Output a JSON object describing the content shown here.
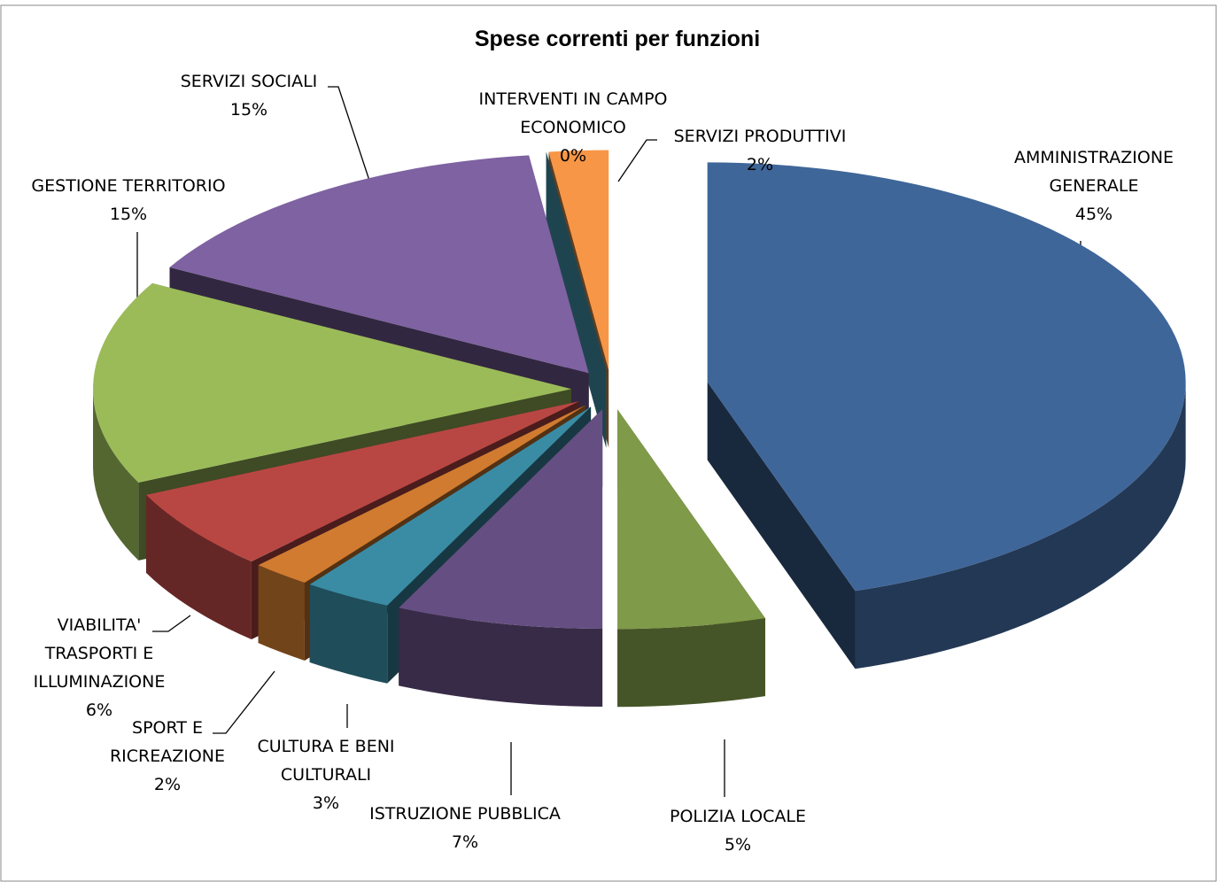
{
  "chart_data": {
    "type": "pie3d",
    "title": "Spese correnti per funzioni",
    "categories": [
      "AMMINISTRAZIONE GENERALE",
      "POLIZIA LOCALE",
      "ISTRUZIONE PUBBLICA",
      "CULTURA E BENI CULTURALI",
      "SPORT E RICREAZIONE",
      "VIABILITA' TRASPORTI E ILLUMINAZIONE",
      "GESTIONE TERRITORIO",
      "SERVIZI SOCIALI",
      "INTERVENTI IN CAMPO ECONOMICO",
      "SERVIZI PRODUTTIVI"
    ],
    "values": [
      45,
      5,
      7,
      3,
      2,
      6,
      15,
      15,
      0,
      2
    ],
    "value_labels": [
      "45%",
      "5%",
      "7%",
      "3%",
      "2%",
      "6%",
      "15%",
      "15%",
      "0%",
      "2%"
    ],
    "colors": [
      "#3f6699",
      "#7f9a48",
      "#654f82",
      "#3a8ca4",
      "#d07b30",
      "#b84744",
      "#9bbb59",
      "#7e62a1",
      "#4bacc6",
      "#f79646"
    ]
  }
}
